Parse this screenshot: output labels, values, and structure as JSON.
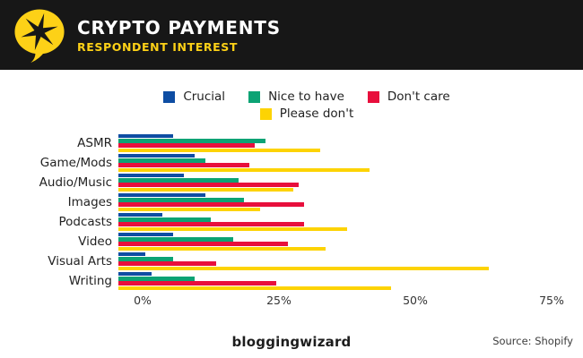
{
  "header": {
    "title": "CRYPTO PAYMENTS",
    "subtitle": "RESPONDENT INTEREST",
    "logo_icon": "speech-bubble-star",
    "background_color": "#171717",
    "accent_yellow": "#fdd117"
  },
  "chart_data": {
    "type": "bar",
    "orientation": "horizontal",
    "title": "Crypto Payments — Respondent Interest",
    "categories": [
      "ASMR",
      "Game/Mods",
      "Audio/Music",
      "Images",
      "Podcasts",
      "Video",
      "Visual Arts",
      "Writing"
    ],
    "series": [
      {
        "name": "Crucial",
        "color": "#0e4da3",
        "values": [
          10,
          14,
          12,
          16,
          8,
          10,
          5,
          6
        ]
      },
      {
        "name": "Nice to have",
        "color": "#0ca374",
        "values": [
          27,
          16,
          22,
          23,
          17,
          21,
          10,
          14
        ]
      },
      {
        "name": "Don't care",
        "color": "#e80f3c",
        "values": [
          25,
          24,
          33,
          34,
          34,
          31,
          18,
          29
        ]
      },
      {
        "name": "Please don't",
        "color": "#fdd303",
        "values": [
          37,
          46,
          32,
          26,
          42,
          38,
          68,
          50
        ]
      }
    ],
    "x_ticks": [
      {
        "label": "0%",
        "value": 0
      },
      {
        "label": "25%",
        "value": 25
      },
      {
        "label": "50%",
        "value": 50
      },
      {
        "label": "75%",
        "value": 75
      }
    ],
    "xlim": [
      0,
      82
    ],
    "xlabel": "",
    "ylabel": "",
    "grid": false,
    "legend_position": "top-center"
  },
  "footer": {
    "brand": "bloggingwizard",
    "brand_badge_icon": "asterisk-badge",
    "badge_glyph": "✚",
    "source": "Source: Shopify"
  }
}
